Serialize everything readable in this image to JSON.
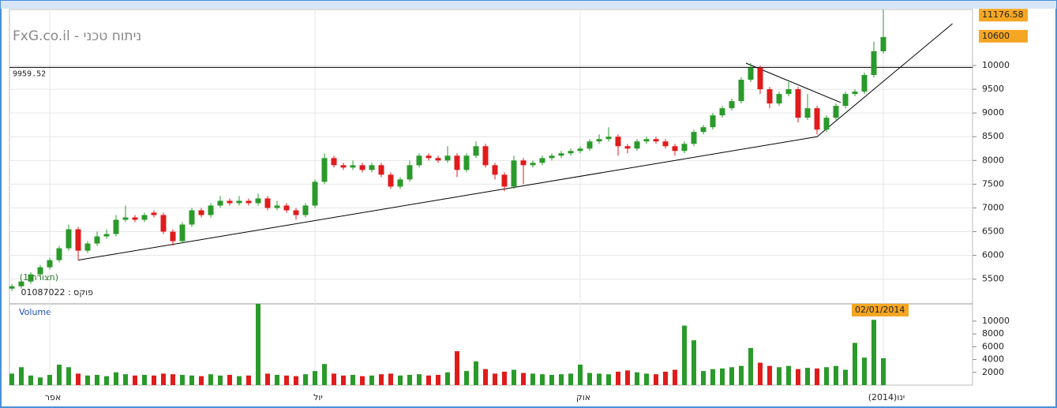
{
  "chart_data": [
    {
      "type": "candlestick",
      "title": "FxG.co.il - ניתוח טכני",
      "categories": [
        null,
        null,
        null,
        null,
        "אפר",
        null,
        null,
        null,
        null,
        null,
        null,
        null,
        null,
        null,
        null,
        null,
        null,
        null,
        null,
        null,
        null,
        null,
        null,
        null,
        null,
        null,
        null,
        null,
        null,
        null,
        null,
        null,
        "יול",
        null,
        null,
        null,
        null,
        null,
        null,
        null,
        null,
        null,
        null,
        null,
        null,
        null,
        null,
        null,
        null,
        null,
        null,
        null,
        null,
        null,
        null,
        null,
        null,
        null,
        null,
        null,
        "אוק",
        null,
        null,
        null,
        null,
        null,
        null,
        null,
        null,
        null,
        null,
        null,
        null,
        null,
        null,
        null,
        null,
        null,
        null,
        null,
        null,
        null,
        null,
        null,
        null,
        null,
        null,
        null,
        null,
        null,
        null,
        null,
        "(2014)ינו"
      ],
      "open": [
        5300,
        5350,
        5450,
        5600,
        5750,
        5900,
        6150,
        6550,
        6100,
        6250,
        6400,
        6450,
        6750,
        6800,
        6750,
        6900,
        6850,
        6500,
        6300,
        6650,
        6950,
        6850,
        7050,
        7150,
        7100,
        7150,
        7100,
        7200,
        7000,
        7050,
        6950,
        6850,
        7050,
        7550,
        8050,
        7900,
        7850,
        7900,
        7800,
        7900,
        7700,
        7450,
        7600,
        7900,
        8100,
        8050,
        8000,
        8100,
        7800,
        8100,
        8300,
        7900,
        7700,
        7450,
        8000,
        7900,
        7950,
        8050,
        8100,
        8150,
        8200,
        8250,
        8400,
        8450,
        8500,
        8300,
        8250,
        8400,
        8450,
        8400,
        8300,
        8200,
        8350,
        8600,
        8700,
        8950,
        9100,
        9250,
        9700,
        9950,
        9500,
        9200,
        9400,
        9500,
        8900,
        9100,
        8650,
        8900,
        9150,
        9400,
        9450,
        9800,
        10300
      ],
      "high": [
        5400,
        5500,
        5650,
        5800,
        5950,
        6200,
        6650,
        6600,
        6300,
        6500,
        6550,
        6850,
        7050,
        6850,
        6900,
        6950,
        6900,
        6550,
        6700,
        7000,
        7000,
        7100,
        7250,
        7200,
        7250,
        7200,
        7300,
        7250,
        7150,
        7100,
        7000,
        7100,
        7600,
        8150,
        8100,
        7950,
        8000,
        7950,
        7950,
        7950,
        7750,
        7650,
        8000,
        8150,
        8150,
        8100,
        8300,
        8150,
        8150,
        8400,
        8350,
        7950,
        7750,
        8100,
        8050,
        8000,
        8100,
        8150,
        8200,
        8250,
        8300,
        8450,
        8550,
        8700,
        8550,
        8350,
        8450,
        8500,
        8500,
        8450,
        8350,
        8400,
        8650,
        8750,
        9000,
        9150,
        9300,
        9750,
        10050,
        10000,
        9550,
        9450,
        9650,
        9550,
        9400,
        9150,
        8950,
        9200,
        9450,
        9500,
        9850,
        10500,
        11176.58
      ],
      "low": [
        5250,
        5300,
        5400,
        5550,
        5700,
        5850,
        6100,
        5900,
        6050,
        6200,
        6350,
        6400,
        6700,
        6700,
        6700,
        6800,
        6450,
        6200,
        6250,
        6600,
        6800,
        6800,
        7000,
        7050,
        7050,
        7050,
        7050,
        6950,
        6950,
        6900,
        6750,
        6800,
        7000,
        7500,
        7850,
        7800,
        7800,
        7750,
        7750,
        7650,
        7400,
        7400,
        7550,
        7850,
        8000,
        7950,
        7950,
        7650,
        7750,
        8050,
        7850,
        7600,
        7350,
        7400,
        7500,
        7850,
        7900,
        8000,
        8050,
        8100,
        8150,
        8200,
        8350,
        8400,
        8100,
        8150,
        8200,
        8350,
        8350,
        8250,
        8100,
        8150,
        8300,
        8550,
        8650,
        8900,
        9050,
        9200,
        9650,
        9400,
        9100,
        9150,
        9350,
        8800,
        8850,
        8550,
        8600,
        8850,
        9100,
        9350,
        9400,
        9750,
        10250
      ],
      "close": [
        5350,
        5450,
        5600,
        5750,
        5900,
        6150,
        6550,
        6100,
        6250,
        6400,
        6450,
        6750,
        6800,
        6750,
        6850,
        6850,
        6500,
        6300,
        6650,
        6950,
        6850,
        7050,
        7150,
        7100,
        7150,
        7100,
        7200,
        7000,
        7050,
        6950,
        6850,
        7050,
        7550,
        8050,
        7900,
        7850,
        7900,
        7800,
        7900,
        7700,
        7450,
        7600,
        7900,
        8100,
        8050,
        8000,
        8100,
        7800,
        8100,
        8300,
        7900,
        7700,
        7450,
        8000,
        7900,
        7950,
        8050,
        8100,
        8150,
        8200,
        8250,
        8400,
        8450,
        8500,
        8300,
        8250,
        8400,
        8450,
        8400,
        8300,
        8200,
        8350,
        8600,
        8700,
        8950,
        9100,
        9250,
        9700,
        9950,
        9500,
        9200,
        9400,
        9500,
        8900,
        9100,
        8650,
        8900,
        9150,
        9400,
        9450,
        9800,
        10300,
        10600
      ],
      "up_color": "#2a9a2a",
      "down_color": "#e01b1b",
      "ylim": [
        4980,
        11180
      ],
      "yticks": [
        5500,
        6000,
        6500,
        7000,
        7500,
        8000,
        8500,
        9000,
        9500,
        10000
      ],
      "level": 9959.52,
      "annotations": [
        "פוקס : 01087022",
        "(תצורה 1)"
      ],
      "trendlines": [
        [
          [
            7,
            5900
          ],
          [
            85,
            8500
          ],
          [
            99.3,
            10880
          ]
        ],
        [
          [
            77.5,
            10050
          ],
          [
            87.5,
            9220
          ]
        ]
      ]
    },
    {
      "type": "bar",
      "label": "Volume",
      "date_label": "02/01/2014",
      "values": [
        1800,
        2800,
        1500,
        1200,
        1600,
        3200,
        2800,
        1800,
        1500,
        1600,
        1400,
        2000,
        1700,
        1500,
        1600,
        1500,
        1800,
        1700,
        1600,
        1500,
        1400,
        1700,
        1500,
        1600,
        1400,
        1500,
        12700,
        1800,
        1600,
        1500,
        1400,
        1700,
        2200,
        3300,
        1800,
        1500,
        1600,
        1400,
        1500,
        1700,
        1800,
        1500,
        1600,
        1700,
        1500,
        1600,
        2000,
        5300,
        2200,
        3700,
        2500,
        1800,
        2100,
        2400,
        1900,
        1800,
        1700,
        1600,
        1700,
        1800,
        3200,
        1900,
        1800,
        1700,
        2100,
        2300,
        2000,
        1800,
        1700,
        2100,
        2400,
        9300,
        7000,
        2200,
        2500,
        2600,
        2800,
        3000,
        5800,
        3500,
        3000,
        2800,
        3000,
        2500,
        2700,
        2600,
        2800,
        3000,
        2400,
        6600,
        4300,
        10200,
        4200
      ],
      "ylim": [
        0,
        12700
      ],
      "yticks": [
        2000,
        4000,
        6000,
        8000,
        10000
      ]
    }
  ]
}
